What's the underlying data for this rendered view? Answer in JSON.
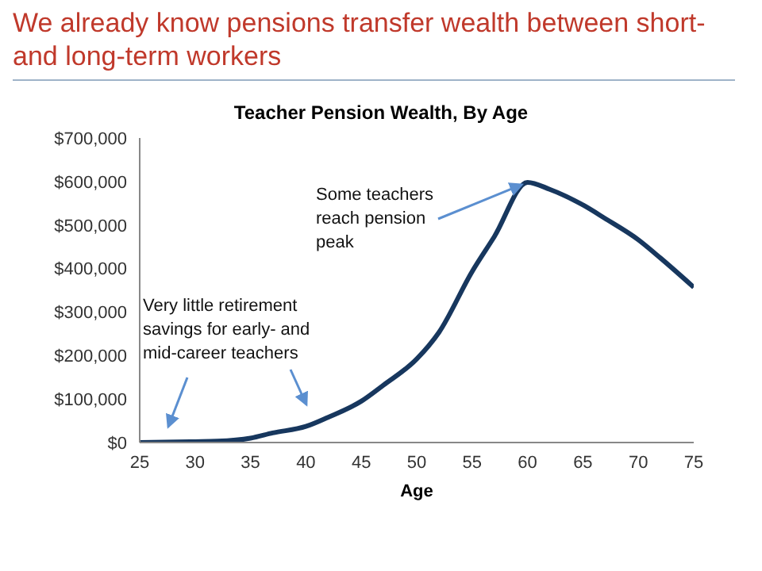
{
  "chart_data": {
    "type": "line",
    "title": "We already know pensions transfer wealth between short- and long-term workers",
    "subtitle": "Teacher Pension Wealth, By Age",
    "xlabel": "Age",
    "x": [
      25,
      30,
      32,
      35,
      37,
      40,
      42,
      45,
      47,
      50,
      52,
      55,
      57,
      60,
      62,
      65,
      67,
      70,
      72,
      75
    ],
    "series": [
      {
        "color": "#17375e",
        "values": [
          0,
          2000,
          3000,
          10000,
          22000,
          37000,
          58000,
          95000,
          132000,
          192000,
          253000,
          393000,
          473000,
          598000,
          582000,
          546000,
          515000,
          466000,
          424000,
          357000
        ]
      }
    ],
    "xlim": [
      25,
      75
    ],
    "xticks": [
      25,
      30,
      35,
      40,
      45,
      50,
      55,
      60,
      65,
      70,
      75
    ],
    "ylim": [
      0,
      700000
    ],
    "yticks": [
      {
        "value": 0,
        "label": "$0"
      },
      {
        "value": 100000,
        "label": "$100,000"
      },
      {
        "value": 200000,
        "label": "$200,000"
      },
      {
        "value": 300000,
        "label": "$300,000"
      },
      {
        "value": 400000,
        "label": "$400,000"
      },
      {
        "value": 500000,
        "label": "$500,000"
      },
      {
        "value": 600000,
        "label": "$600,000"
      },
      {
        "value": 700000,
        "label": "$700,000"
      }
    ],
    "grid": false,
    "legend": false,
    "marker": "none",
    "line_style": "solid",
    "annotations": [
      "Very little retirement savings for early- and mid-career teachers",
      {
        "text": "Some teachers reach pension peak",
        "x": 60,
        "y": 598000
      }
    ]
  }
}
